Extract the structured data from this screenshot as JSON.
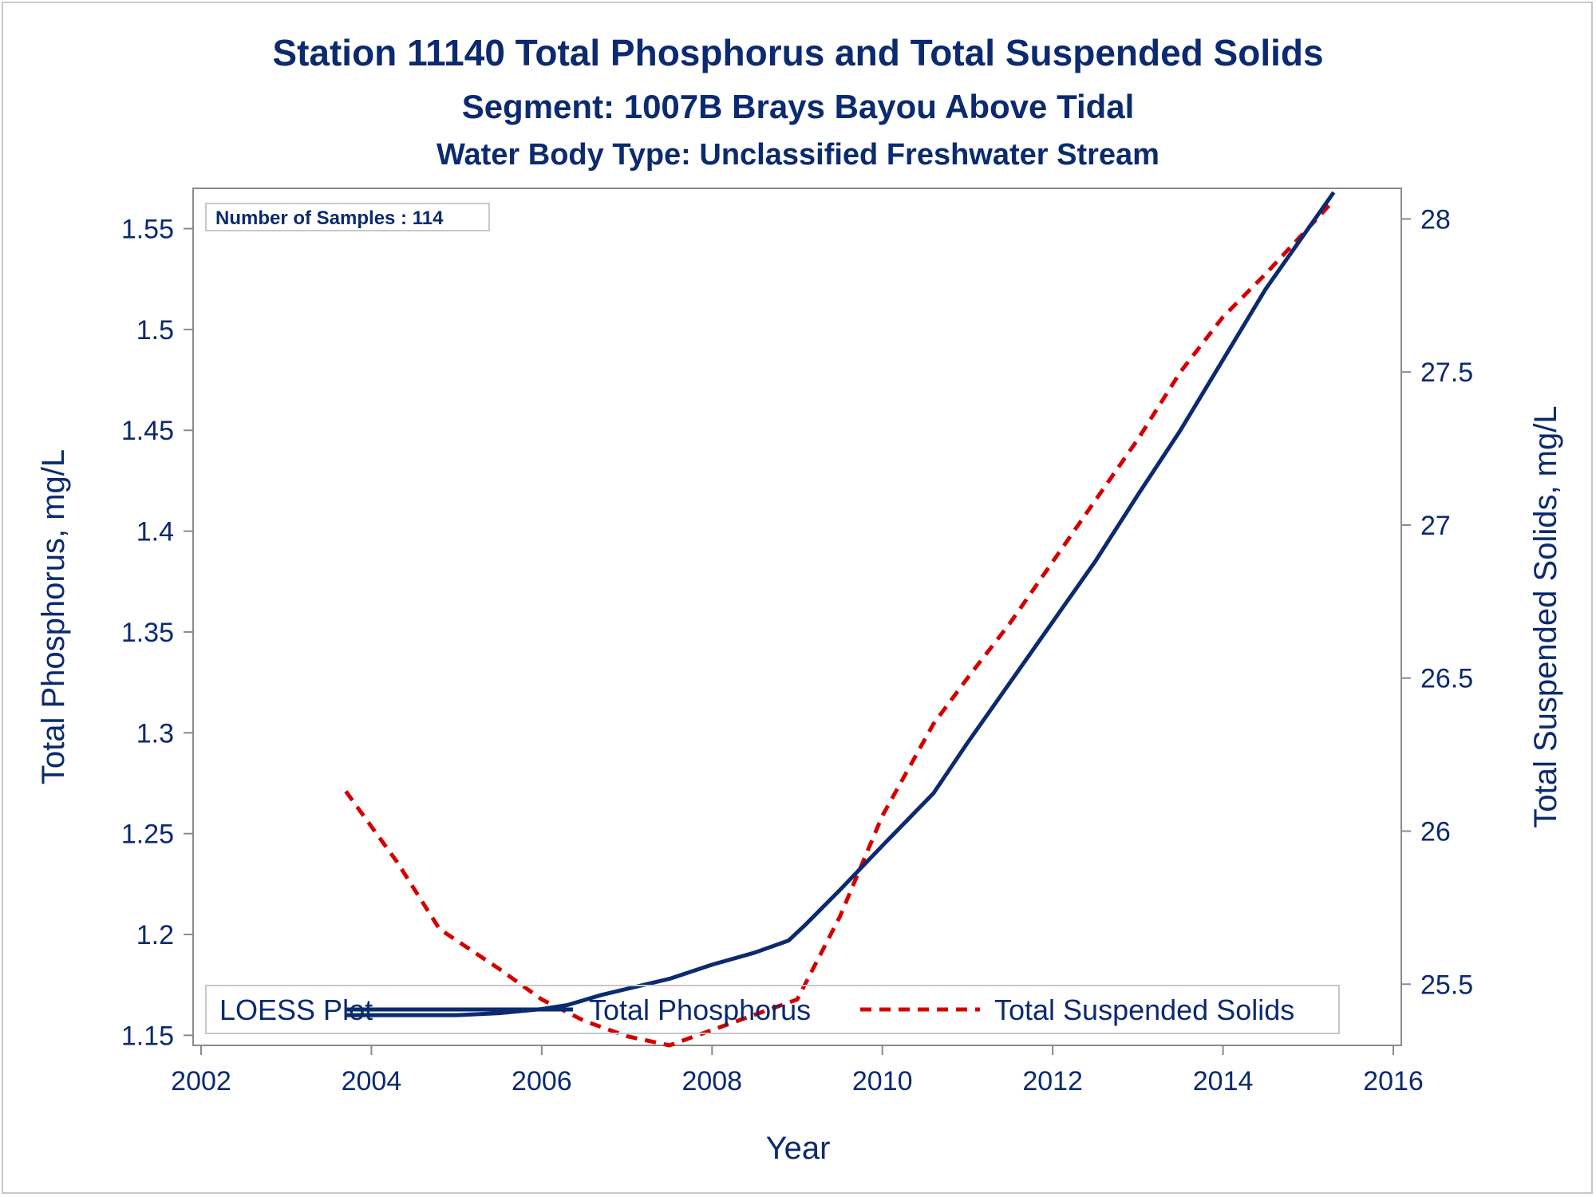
{
  "chart_data": {
    "type": "line",
    "title": "Station 11140  Total Phosphorus and Total Suspended Solids",
    "subtitle": "Segment: 1007B  Brays Bayou Above Tidal",
    "subtitle2": "Water Body Type: Unclassified Freshwater Stream",
    "xlabel": "Year",
    "ylabel_left": "Total Phosphorus, mg/L",
    "ylabel_right": "Total Suspended Solids, mg/L",
    "xlim": [
      2002,
      2016
    ],
    "ylim_left": [
      1.145,
      1.57
    ],
    "ylim_right": [
      25.3,
      28.1
    ],
    "x_ticks": [
      "2002",
      "2004",
      "2006",
      "2008",
      "2010",
      "2012",
      "2014",
      "2016"
    ],
    "y_left_ticks": [
      "1.15",
      "1.2",
      "1.25",
      "1.3",
      "1.35",
      "1.4",
      "1.45",
      "1.5",
      "1.55"
    ],
    "y_right_ticks": [
      "25.5",
      "26",
      "26.5",
      "27",
      "27.5",
      "28"
    ],
    "annotation": "Number of Samples : 114",
    "legend": {
      "title": "LOESS Plot",
      "entries": [
        "Total Phosphorus",
        "Total Suspended Solids"
      ],
      "placement": "bottom-inside"
    },
    "series": [
      {
        "name": "Total Phosphorus",
        "axis": "left",
        "color": "#0b2a6f",
        "style": "solid",
        "points": [
          [
            2003.7,
            1.16
          ],
          [
            2004.5,
            1.16
          ],
          [
            2005.0,
            1.16
          ],
          [
            2005.5,
            1.161
          ],
          [
            2006.0,
            1.163
          ],
          [
            2006.3,
            1.165
          ],
          [
            2006.7,
            1.17
          ],
          [
            2007.0,
            1.173
          ],
          [
            2007.5,
            1.178
          ],
          [
            2008.0,
            1.185
          ],
          [
            2008.5,
            1.191
          ],
          [
            2008.9,
            1.197
          ],
          [
            2009.1,
            1.205
          ],
          [
            2009.5,
            1.222
          ],
          [
            2010.0,
            1.244
          ],
          [
            2010.6,
            1.27
          ],
          [
            2011.0,
            1.295
          ],
          [
            2011.5,
            1.325
          ],
          [
            2012.0,
            1.355
          ],
          [
            2012.5,
            1.385
          ],
          [
            2013.0,
            1.418
          ],
          [
            2013.5,
            1.45
          ],
          [
            2014.0,
            1.485
          ],
          [
            2014.5,
            1.52
          ],
          [
            2015.3,
            1.568
          ]
        ]
      },
      {
        "name": "Total Suspended Solids",
        "axis": "right",
        "color": "#d40000",
        "style": "dashed",
        "points": [
          [
            2003.7,
            26.13
          ],
          [
            2004.3,
            25.9
          ],
          [
            2004.8,
            25.68
          ],
          [
            2005.5,
            25.55
          ],
          [
            2006.0,
            25.45
          ],
          [
            2006.5,
            25.38
          ],
          [
            2007.0,
            25.33
          ],
          [
            2007.5,
            25.3
          ],
          [
            2008.0,
            25.35
          ],
          [
            2008.5,
            25.4
          ],
          [
            2009.0,
            25.45
          ],
          [
            2009.5,
            25.72
          ],
          [
            2010.0,
            26.05
          ],
          [
            2010.6,
            26.35
          ],
          [
            2011.0,
            26.5
          ],
          [
            2011.5,
            26.68
          ],
          [
            2012.0,
            26.88
          ],
          [
            2012.5,
            27.08
          ],
          [
            2013.0,
            27.28
          ],
          [
            2013.5,
            27.5
          ],
          [
            2014.0,
            27.68
          ],
          [
            2014.5,
            27.82
          ],
          [
            2015.3,
            28.06
          ]
        ]
      }
    ]
  }
}
